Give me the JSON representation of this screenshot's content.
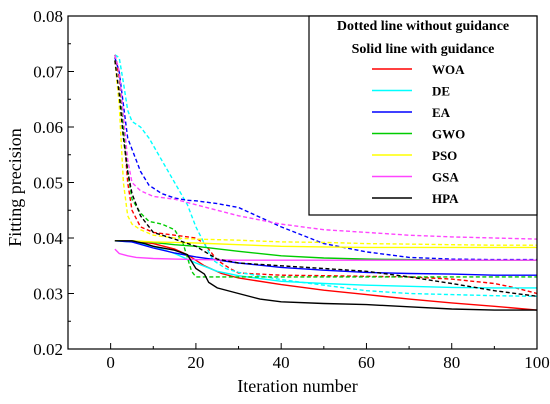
{
  "chart_data": {
    "type": "line",
    "title": "",
    "xlabel": "Iteration number",
    "ylabel": "Fitting precision",
    "xlim": [
      -10,
      100
    ],
    "ylim": [
      0.02,
      0.08
    ],
    "xticks": [
      0,
      20,
      40,
      60,
      80,
      100
    ],
    "xtick_labels": [
      "0",
      "20",
      "40",
      "60",
      "80",
      "100"
    ],
    "yticks": [
      0.02,
      0.03,
      0.04,
      0.05,
      0.06,
      0.07,
      0.08
    ],
    "ytick_labels": [
      "0.02",
      "0.03",
      "0.04",
      "0.05",
      "0.06",
      "0.07",
      "0.08"
    ],
    "grid": false,
    "legend": {
      "placement": "top-right",
      "header_lines": [
        "Dotted line without guidance",
        "Solid line with guidance"
      ]
    },
    "series": [
      {
        "name": "WOA",
        "color": "#ff0000",
        "solid": [
          [
            1,
            0.0395
          ],
          [
            5,
            0.0395
          ],
          [
            10,
            0.039
          ],
          [
            15,
            0.038
          ],
          [
            18,
            0.037
          ],
          [
            22,
            0.035
          ],
          [
            26,
            0.0336
          ],
          [
            30,
            0.0328
          ],
          [
            40,
            0.0316
          ],
          [
            50,
            0.0306
          ],
          [
            60,
            0.0298
          ],
          [
            70,
            0.029
          ],
          [
            80,
            0.0283
          ],
          [
            90,
            0.0277
          ],
          [
            100,
            0.027
          ]
        ],
        "dotted": [
          [
            1,
            0.073
          ],
          [
            2,
            0.069
          ],
          [
            3,
            0.06
          ],
          [
            4,
            0.05
          ],
          [
            5,
            0.045
          ],
          [
            7,
            0.042
          ],
          [
            10,
            0.041
          ],
          [
            15,
            0.0405
          ],
          [
            20,
            0.04
          ],
          [
            22,
            0.039
          ],
          [
            25,
            0.036
          ],
          [
            28,
            0.0345
          ],
          [
            30,
            0.0337
          ],
          [
            40,
            0.0333
          ],
          [
            50,
            0.0332
          ],
          [
            60,
            0.0331
          ],
          [
            70,
            0.033
          ],
          [
            80,
            0.0326
          ],
          [
            90,
            0.0318
          ],
          [
            95,
            0.031
          ],
          [
            100,
            0.03
          ]
        ]
      },
      {
        "name": "DE",
        "color": "#00ffff",
        "solid": [
          [
            1,
            0.0395
          ],
          [
            5,
            0.0393
          ],
          [
            10,
            0.0385
          ],
          [
            15,
            0.0372
          ],
          [
            20,
            0.0355
          ],
          [
            25,
            0.034
          ],
          [
            30,
            0.0332
          ],
          [
            40,
            0.0322
          ],
          [
            50,
            0.0318
          ],
          [
            60,
            0.0315
          ],
          [
            70,
            0.0313
          ],
          [
            80,
            0.0311
          ],
          [
            90,
            0.031
          ],
          [
            100,
            0.031
          ]
        ],
        "dotted": [
          [
            1,
            0.073
          ],
          [
            2,
            0.0725
          ],
          [
            3,
            0.068
          ],
          [
            4,
            0.063
          ],
          [
            5,
            0.061
          ],
          [
            7,
            0.06
          ],
          [
            9,
            0.058
          ],
          [
            12,
            0.054
          ],
          [
            15,
            0.05
          ],
          [
            18,
            0.046
          ],
          [
            20,
            0.042
          ],
          [
            22,
            0.039
          ],
          [
            24,
            0.036
          ],
          [
            27,
            0.0345
          ],
          [
            30,
            0.0338
          ],
          [
            40,
            0.0325
          ],
          [
            50,
            0.0315
          ],
          [
            60,
            0.0305
          ],
          [
            70,
            0.03
          ],
          [
            80,
            0.0298
          ],
          [
            90,
            0.0296
          ],
          [
            100,
            0.0295
          ]
        ]
      },
      {
        "name": "EA",
        "color": "#0000ff",
        "solid": [
          [
            1,
            0.0395
          ],
          [
            5,
            0.0393
          ],
          [
            10,
            0.0382
          ],
          [
            15,
            0.0373
          ],
          [
            20,
            0.0366
          ],
          [
            30,
            0.0355
          ],
          [
            40,
            0.0347
          ],
          [
            50,
            0.0342
          ],
          [
            60,
            0.0338
          ],
          [
            70,
            0.0336
          ],
          [
            80,
            0.0335
          ],
          [
            90,
            0.0333
          ],
          [
            100,
            0.0333
          ]
        ],
        "dotted": [
          [
            1,
            0.0725
          ],
          [
            2,
            0.07
          ],
          [
            3,
            0.064
          ],
          [
            4,
            0.058
          ],
          [
            5,
            0.056
          ],
          [
            7,
            0.052
          ],
          [
            9,
            0.0495
          ],
          [
            12,
            0.048
          ],
          [
            15,
            0.0472
          ],
          [
            18,
            0.0468
          ],
          [
            20,
            0.0467
          ],
          [
            25,
            0.0462
          ],
          [
            30,
            0.0455
          ],
          [
            40,
            0.042
          ],
          [
            50,
            0.039
          ],
          [
            60,
            0.0375
          ],
          [
            70,
            0.0365
          ],
          [
            80,
            0.0362
          ],
          [
            90,
            0.0361
          ],
          [
            100,
            0.0361
          ]
        ]
      },
      {
        "name": "GWO",
        "color": "#00cc00",
        "solid": [
          [
            1,
            0.0395
          ],
          [
            5,
            0.0395
          ],
          [
            10,
            0.0392
          ],
          [
            15,
            0.0388
          ],
          [
            20,
            0.0385
          ],
          [
            30,
            0.0376
          ],
          [
            40,
            0.0368
          ],
          [
            50,
            0.0364
          ],
          [
            60,
            0.0362
          ],
          [
            70,
            0.0361
          ],
          [
            80,
            0.036
          ],
          [
            90,
            0.036
          ],
          [
            100,
            0.036
          ]
        ],
        "dotted": [
          [
            1,
            0.073
          ],
          [
            2,
            0.07
          ],
          [
            3,
            0.06
          ],
          [
            4,
            0.052
          ],
          [
            5,
            0.047
          ],
          [
            7,
            0.0445
          ],
          [
            9,
            0.043
          ],
          [
            12,
            0.0425
          ],
          [
            15,
            0.0415
          ],
          [
            17,
            0.039
          ],
          [
            19,
            0.034
          ],
          [
            20,
            0.033
          ],
          [
            25,
            0.033
          ],
          [
            30,
            0.033
          ],
          [
            40,
            0.033
          ],
          [
            50,
            0.033
          ],
          [
            60,
            0.033
          ],
          [
            70,
            0.033
          ],
          [
            80,
            0.033
          ],
          [
            90,
            0.033
          ],
          [
            100,
            0.033
          ]
        ]
      },
      {
        "name": "PSO",
        "color": "#ffff00",
        "solid": [
          [
            1,
            0.0395
          ],
          [
            5,
            0.0395
          ],
          [
            10,
            0.0393
          ],
          [
            15,
            0.0392
          ],
          [
            20,
            0.0391
          ],
          [
            30,
            0.0388
          ],
          [
            40,
            0.0385
          ],
          [
            50,
            0.0384
          ],
          [
            60,
            0.0383
          ],
          [
            70,
            0.0383
          ],
          [
            80,
            0.0383
          ],
          [
            90,
            0.0383
          ],
          [
            100,
            0.0383
          ]
        ],
        "dotted": [
          [
            1,
            0.072
          ],
          [
            2,
            0.064
          ],
          [
            3,
            0.05
          ],
          [
            4,
            0.044
          ],
          [
            5,
            0.0425
          ],
          [
            7,
            0.0415
          ],
          [
            10,
            0.0405
          ],
          [
            15,
            0.04
          ],
          [
            20,
            0.0398
          ],
          [
            30,
            0.0396
          ],
          [
            40,
            0.0393
          ],
          [
            50,
            0.0392
          ],
          [
            60,
            0.039
          ],
          [
            70,
            0.0389
          ],
          [
            80,
            0.0388
          ],
          [
            90,
            0.0387
          ],
          [
            100,
            0.0387
          ]
        ]
      },
      {
        "name": "GSA",
        "color": "#ff44ff",
        "solid": [
          [
            1,
            0.038
          ],
          [
            2,
            0.0372
          ],
          [
            4,
            0.0368
          ],
          [
            6,
            0.0365
          ],
          [
            10,
            0.0363
          ],
          [
            15,
            0.0362
          ],
          [
            20,
            0.0361
          ],
          [
            30,
            0.036
          ],
          [
            40,
            0.036
          ],
          [
            50,
            0.036
          ],
          [
            60,
            0.036
          ],
          [
            70,
            0.036
          ],
          [
            80,
            0.036
          ],
          [
            90,
            0.036
          ],
          [
            100,
            0.036
          ]
        ],
        "dotted": [
          [
            1,
            0.073
          ],
          [
            2,
            0.07
          ],
          [
            3,
            0.062
          ],
          [
            4,
            0.054
          ],
          [
            5,
            0.05
          ],
          [
            7,
            0.0485
          ],
          [
            10,
            0.0475
          ],
          [
            15,
            0.047
          ],
          [
            20,
            0.046
          ],
          [
            25,
            0.045
          ],
          [
            30,
            0.044
          ],
          [
            40,
            0.0425
          ],
          [
            50,
            0.0415
          ],
          [
            60,
            0.041
          ],
          [
            70,
            0.0405
          ],
          [
            80,
            0.0402
          ],
          [
            90,
            0.04
          ],
          [
            100,
            0.0398
          ]
        ]
      },
      {
        "name": "HPA",
        "color": "#000000",
        "solid": [
          [
            1,
            0.0395
          ],
          [
            5,
            0.0395
          ],
          [
            8,
            0.039
          ],
          [
            10,
            0.0385
          ],
          [
            15,
            0.0378
          ],
          [
            18,
            0.037
          ],
          [
            20,
            0.0345
          ],
          [
            22,
            0.0335
          ],
          [
            23,
            0.032
          ],
          [
            25,
            0.031
          ],
          [
            30,
            0.03
          ],
          [
            35,
            0.029
          ],
          [
            40,
            0.0285
          ],
          [
            50,
            0.0282
          ],
          [
            60,
            0.028
          ],
          [
            70,
            0.0276
          ],
          [
            80,
            0.0272
          ],
          [
            90,
            0.027
          ],
          [
            100,
            0.027
          ]
        ],
        "dotted": [
          [
            1,
            0.072
          ],
          [
            2,
            0.066
          ],
          [
            3,
            0.058
          ],
          [
            4,
            0.052
          ],
          [
            5,
            0.048
          ],
          [
            7,
            0.044
          ],
          [
            10,
            0.041
          ],
          [
            15,
            0.0398
          ],
          [
            20,
            0.0385
          ],
          [
            25,
            0.0362
          ],
          [
            30,
            0.0355
          ],
          [
            40,
            0.035
          ],
          [
            50,
            0.0345
          ],
          [
            60,
            0.034
          ],
          [
            70,
            0.033
          ],
          [
            80,
            0.0318
          ],
          [
            90,
            0.0305
          ],
          [
            100,
            0.0295
          ]
        ]
      }
    ]
  }
}
